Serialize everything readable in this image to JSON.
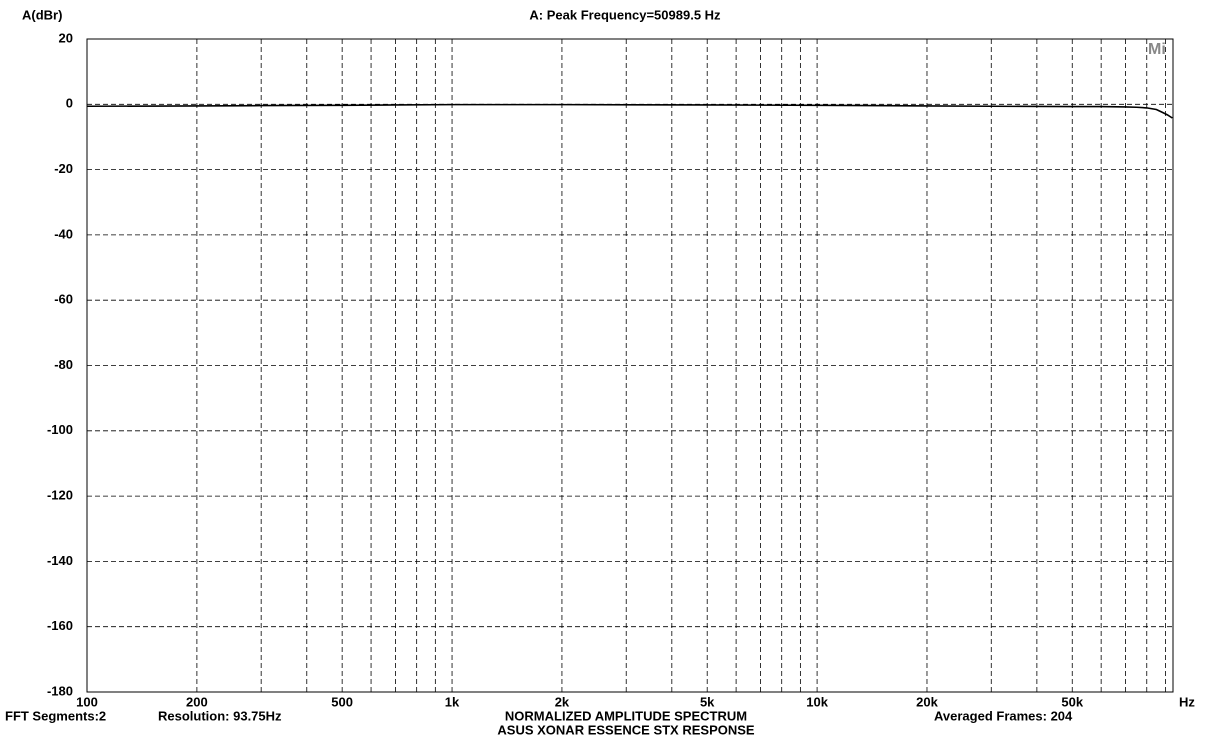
{
  "chart_data": {
    "type": "line",
    "title": "A: Peak Frequency=50989.5 Hz",
    "y_label": "A(dBr)",
    "x_label": "Hz",
    "logo": "Mi",
    "footer": {
      "fft_segments": "FFT Segments:2",
      "resolution": "Resolution: 93.75Hz",
      "subtitle": "NORMALIZED AMPLITUDE SPECTRUM",
      "caption": "ASUS XONAR ESSENCE STX RESPONSE",
      "averaged_frames": "Averaged Frames: 204"
    },
    "log_x": true,
    "grid": true,
    "xlim": [
      100,
      94400
    ],
    "ylim": [
      -180,
      20
    ],
    "xticks": [
      100,
      200,
      500,
      {
        "value": 1000,
        "label": "1k"
      },
      {
        "value": 2000,
        "label": "2k"
      },
      {
        "value": 5000,
        "label": "5k"
      },
      {
        "value": 10000,
        "label": "10k"
      },
      {
        "value": 20000,
        "label": "20k"
      },
      {
        "value": 50000,
        "label": "50k"
      }
    ],
    "xminorticks": [
      300,
      400,
      600,
      700,
      800,
      900,
      3000,
      4000,
      6000,
      7000,
      8000,
      9000,
      30000,
      40000,
      60000,
      70000,
      80000,
      90000
    ],
    "yticks": [
      20,
      0,
      -20,
      -40,
      -60,
      -80,
      -100,
      -120,
      -140,
      -160,
      -180
    ],
    "series": [
      {
        "color": "#000000",
        "x": [
          100,
          200,
          300,
          500,
          700,
          1000,
          2000,
          5000,
          10000,
          20000,
          30000,
          50000,
          60000,
          70000,
          75000,
          80000,
          85000,
          88000,
          91000,
          94000
        ],
        "values": [
          -0.6,
          -0.5,
          -0.4,
          -0.3,
          -0.2,
          -0.1,
          -0.1,
          -0.2,
          -0.3,
          -0.5,
          -0.6,
          -0.7,
          -0.7,
          -0.8,
          -0.9,
          -1.1,
          -1.6,
          -2.4,
          -3.2,
          -4.2
        ]
      }
    ]
  }
}
